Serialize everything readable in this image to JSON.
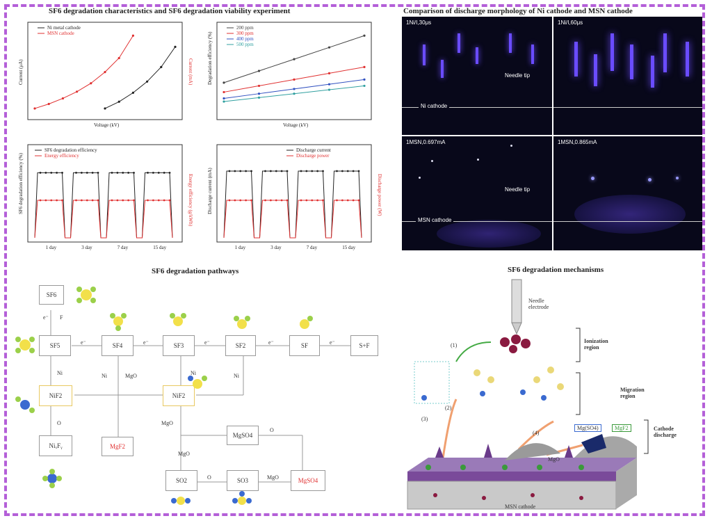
{
  "titles": {
    "charts": "SF6 degradation characteristics and SF6 degradation viability experiment",
    "morphology": "Comparison of discharge morphology of Ni cathode and MSN cathode",
    "pathways": "SF6 degradation pathways",
    "mechanisms": "SF6 degradation mechanisms"
  },
  "morphology": {
    "panels": [
      "1Ni/I,30μs",
      "1Ni/I,60μs",
      "1MSN,0.697mA",
      "1MSN,0.865mA"
    ],
    "needle_tip": "Needle tip",
    "ni_cathode": "Ni cathode",
    "msn_cathode": "MSN cathode"
  },
  "pathways": {
    "nodes": {
      "sf6": "SF6",
      "sf5": "SF5",
      "sf4": "SF4",
      "sf3": "SF3",
      "sf2": "SF2",
      "sf": "SF",
      "sf0": "S+F",
      "ni1": "NiF2",
      "ni2": "NiF2",
      "nkf": "NiₓFᵧ",
      "mgf2": "MgF2",
      "mgso4a": "MgSO4",
      "so2": "SO2",
      "so3": "SO3",
      "mgso4b": "MgSO4"
    },
    "edge_labels": {
      "e": "e⁻",
      "f": "F",
      "ni": "Ni",
      "mgo": "MgO",
      "o": "O"
    }
  },
  "mechanisms": {
    "needle": "Needle electrode",
    "ionization": "Ionization region",
    "migration": "Migration region",
    "cathode_discharge": "Cathode discharge",
    "mgo_label": "MgO",
    "msn_cathode": "MSN cathode",
    "badge1": "Mg(SO4)",
    "badge2": "MgF2",
    "steps": [
      "(1)",
      "(2)",
      "(3)",
      "(4)"
    ]
  },
  "chart_data": [
    {
      "type": "line",
      "xlabel": "Voltage (kV)",
      "ylabel": "Current (μA)",
      "y2label": "Current (mA)",
      "series": [
        {
          "name": "Ni metal cathode",
          "color": "#222222",
          "x": [
            1,
            2,
            3,
            4,
            5,
            6
          ],
          "values": [
            10,
            22,
            38,
            58,
            84,
            120
          ]
        },
        {
          "name": "MSN cathode",
          "color": "#e03030",
          "x": [
            -4,
            -3,
            -2,
            -1,
            0,
            1,
            2,
            3
          ],
          "values": [
            10,
            18,
            28,
            40,
            55,
            75,
            100,
            140
          ]
        }
      ]
    },
    {
      "type": "line",
      "xlabel": "Voltage (kV)",
      "ylabel": "Degradation efficiency (%)",
      "series": [
        {
          "name": "200 ppm",
          "color": "#444444",
          "x": [
            1,
            2,
            3,
            4,
            5
          ],
          "values": [
            40,
            55,
            70,
            85,
            100
          ]
        },
        {
          "name": "300 ppm",
          "color": "#e03030",
          "x": [
            1,
            2,
            3,
            4,
            5
          ],
          "values": [
            28,
            36,
            44,
            52,
            60
          ]
        },
        {
          "name": "400 ppm",
          "color": "#3050c0",
          "x": [
            1,
            2,
            3,
            4,
            5
          ],
          "values": [
            20,
            26,
            32,
            38,
            44
          ]
        },
        {
          "name": "500 ppm",
          "color": "#30a0a0",
          "x": [
            1,
            2,
            3,
            4,
            5
          ],
          "values": [
            16,
            21,
            26,
            31,
            36
          ]
        }
      ]
    },
    {
      "type": "line",
      "xlabel": "",
      "ylabel": "SF6 degradation efficiency (%)",
      "y2label": "Energy efficiency (g/kWh)",
      "categories": [
        "1 day",
        "3 day",
        "7 day",
        "15 day"
      ],
      "series": [
        {
          "name": "SF6 degradation efficiency",
          "color": "#222222",
          "level": 0.78
        },
        {
          "name": "Energy efficiency",
          "color": "#e03030",
          "level": 0.45
        }
      ]
    },
    {
      "type": "line",
      "xlabel": "",
      "ylabel": "Discharge current (mA)",
      "y2label": "Discharge power (W)",
      "categories": [
        "1 day",
        "3 day",
        "7 day",
        "15 day"
      ],
      "series": [
        {
          "name": "Discharge current",
          "color": "#222222",
          "level": 0.8
        },
        {
          "name": "Discharge power",
          "color": "#e03030",
          "level": 0.45
        }
      ]
    }
  ]
}
